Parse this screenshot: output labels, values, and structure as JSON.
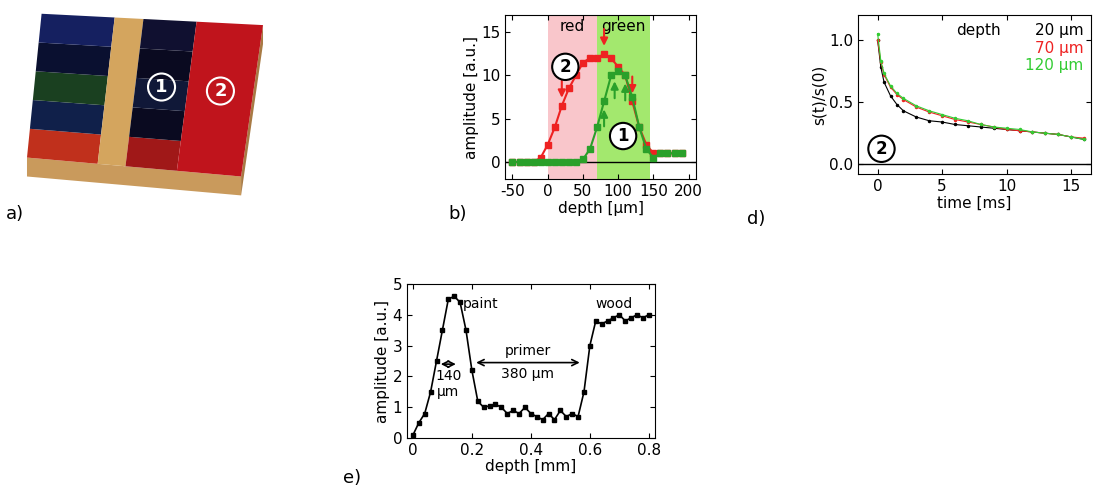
{
  "photo": {
    "panel_label": "a)",
    "markers": [
      "1",
      "2"
    ]
  },
  "chart_data": [
    {
      "type": "line",
      "panel_label": "b)",
      "x_label": "depth [μm]",
      "y_label": "amplitude [a.u.]",
      "xlim": [
        -60,
        210
      ],
      "xticks": [
        -50,
        0,
        50,
        100,
        150,
        200
      ],
      "ylim": [
        -2,
        17
      ],
      "yticks": [
        0,
        5,
        10,
        15
      ],
      "baseline": 0,
      "bands": [
        {
          "label": "red",
          "range": [
            0,
            70
          ],
          "color": "#f9c6cb"
        },
        {
          "label": "green",
          "range": [
            70,
            145
          ],
          "color": "#a3e86e"
        }
      ],
      "x": [
        -50,
        -40,
        -30,
        -20,
        -10,
        0,
        10,
        20,
        30,
        40,
        50,
        60,
        70,
        80,
        90,
        100,
        110,
        120,
        130,
        140,
        150,
        160,
        170,
        180,
        190
      ],
      "series": [
        {
          "name": "2",
          "color": "#ee2222",
          "marker": "square",
          "values": [
            0,
            0,
            0,
            0,
            0.5,
            2,
            4,
            6.5,
            8.5,
            10,
            11.5,
            12,
            12,
            12.5,
            12,
            11,
            10,
            7,
            4,
            2,
            1,
            1,
            1,
            1,
            1
          ],
          "arrows_down": [
            20,
            80,
            120
          ]
        },
        {
          "name": "1",
          "color": "#2aa02a",
          "marker": "square",
          "values": [
            0,
            0,
            0,
            0,
            0,
            0,
            0,
            0,
            0,
            0,
            0.3,
            1.5,
            4,
            7,
            10,
            10.5,
            10,
            7.5,
            4,
            1.5,
            0.5,
            1,
            1,
            1,
            1
          ],
          "arrows_up": [
            80,
            95,
            110
          ]
        }
      ]
    },
    {
      "type": "line",
      "panel_label": "d)",
      "x_label": "time [ms]",
      "y_label": "s(t)/s(0)",
      "xlim": [
        -1.5,
        16.5
      ],
      "xticks": [
        0,
        5,
        10,
        15
      ],
      "ylim": [
        -0.08,
        1.2
      ],
      "yticks": [
        {
          "value": 0,
          "label": "0.0"
        },
        {
          "value": 0.5,
          "label": "0.5"
        },
        {
          "value": 1,
          "label": "1.0"
        }
      ],
      "baseline": 0,
      "legend_title": "depth",
      "marker_label": "2",
      "x": [
        0,
        0.25,
        0.5,
        1,
        1.5,
        2,
        3,
        4,
        5,
        6,
        7,
        8,
        9,
        10,
        11,
        12,
        13,
        14,
        15,
        16
      ],
      "series": [
        {
          "name": "20 μm",
          "color": "#000000",
          "marker": "dot",
          "values": [
            1.0,
            0.78,
            0.66,
            0.55,
            0.48,
            0.43,
            0.38,
            0.35,
            0.34,
            0.32,
            0.31,
            0.3,
            0.29,
            0.28,
            0.27,
            0.26,
            0.25,
            0.24,
            0.22,
            0.2
          ]
        },
        {
          "name": "70 μm",
          "color": "#ee2222",
          "marker": "dot",
          "values": [
            1.0,
            0.82,
            0.72,
            0.62,
            0.56,
            0.52,
            0.46,
            0.42,
            0.39,
            0.36,
            0.34,
            0.32,
            0.3,
            0.28,
            0.27,
            0.26,
            0.25,
            0.24,
            0.22,
            0.21
          ]
        },
        {
          "name": "120 μm",
          "color": "#33cc33",
          "marker": "dot",
          "values": [
            1.05,
            0.83,
            0.73,
            0.63,
            0.57,
            0.53,
            0.47,
            0.43,
            0.4,
            0.37,
            0.35,
            0.32,
            0.3,
            0.29,
            0.28,
            0.26,
            0.25,
            0.24,
            0.22,
            0.2
          ]
        }
      ]
    },
    {
      "type": "line",
      "panel_label": "e)",
      "x_label": "depth [mm]",
      "y_label": "amplitude [a.u.]",
      "xlim": [
        -0.02,
        0.82
      ],
      "xticks": [
        0,
        0.2,
        0.4,
        0.6,
        0.8
      ],
      "ylim": [
        0,
        5
      ],
      "yticks": [
        0,
        1,
        2,
        3,
        4,
        5
      ],
      "layer_labels": [
        "paint",
        "wood"
      ],
      "spans": [
        {
          "range": [
            0.085,
            0.155
          ],
          "below": "140\nμm"
        },
        {
          "range": [
            0.205,
            0.575
          ],
          "above": "primer",
          "below": "380 μm"
        }
      ],
      "x": [
        0,
        0.02,
        0.04,
        0.06,
        0.08,
        0.1,
        0.12,
        0.14,
        0.16,
        0.18,
        0.2,
        0.22,
        0.24,
        0.26,
        0.28,
        0.3,
        0.32,
        0.34,
        0.36,
        0.38,
        0.4,
        0.42,
        0.44,
        0.46,
        0.48,
        0.5,
        0.52,
        0.54,
        0.56,
        0.58,
        0.6,
        0.62,
        0.64,
        0.66,
        0.68,
        0.7,
        0.72,
        0.74,
        0.76,
        0.78,
        0.8
      ],
      "series": [
        {
          "color": "#000000",
          "marker": "square",
          "values": [
            0.1,
            0.5,
            0.8,
            1.5,
            2.5,
            3.5,
            4.5,
            4.6,
            4.4,
            3.5,
            2.2,
            1.2,
            1.0,
            1.05,
            1.1,
            1.0,
            0.8,
            0.9,
            0.8,
            1.0,
            0.8,
            0.7,
            0.6,
            0.8,
            0.6,
            0.9,
            0.7,
            0.8,
            0.7,
            1.5,
            3.0,
            3.8,
            3.7,
            3.8,
            3.9,
            4.0,
            3.8,
            3.9,
            4.0,
            3.9,
            4.0
          ]
        }
      ]
    }
  ]
}
